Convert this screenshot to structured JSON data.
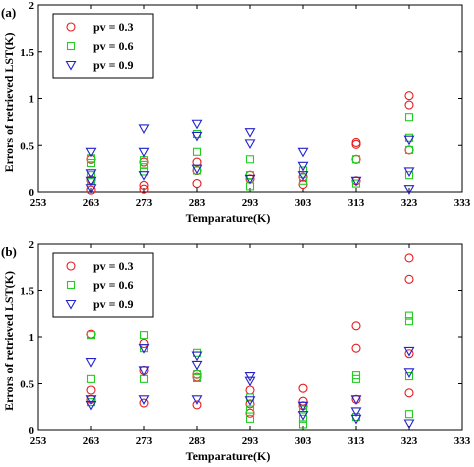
{
  "chart_data": [
    {
      "type": "scatter",
      "panel_label": "(a)",
      "xlabel": "Temparature(K)",
      "ylabel": "Errors of retrieved LST(K)",
      "xlim": [
        253,
        333
      ],
      "ylim": [
        0,
        2
      ],
      "xticks": [
        "253",
        "263",
        "273",
        "283",
        "293",
        "303",
        "313",
        "323",
        "333"
      ],
      "yticks": [
        "0",
        "0.5",
        "1",
        "1.5",
        "2"
      ],
      "grid": false,
      "legend_position": "top-left",
      "series": [
        {
          "name": "pv = 0.3",
          "marker": "circle",
          "color": "#e8191b",
          "points": [
            [
              263,
              0.35
            ],
            [
              263,
              0.13
            ],
            [
              263,
              0.02
            ],
            [
              273,
              0.32
            ],
            [
              273,
              0.07
            ],
            [
              273,
              0.03
            ],
            [
              283,
              0.32
            ],
            [
              283,
              0.23
            ],
            [
              283,
              0.09
            ],
            [
              293,
              0.18
            ],
            [
              293,
              0.14
            ],
            [
              303,
              0.16
            ],
            [
              303,
              0.08
            ],
            [
              313,
              0.53
            ],
            [
              313,
              0.51
            ],
            [
              313,
              0.35
            ],
            [
              313,
              0.12
            ],
            [
              323,
              1.03
            ],
            [
              323,
              0.93
            ],
            [
              323,
              0.45
            ]
          ]
        },
        {
          "name": "pv = 0.6",
          "marker": "square",
          "color": "#22cc22",
          "points": [
            [
              263,
              0.36
            ],
            [
              263,
              0.31
            ],
            [
              263,
              0.18
            ],
            [
              263,
              0.12
            ],
            [
              273,
              0.34
            ],
            [
              273,
              0.29
            ],
            [
              273,
              0.22
            ],
            [
              283,
              0.62
            ],
            [
              283,
              0.43
            ],
            [
              283,
              0.23
            ],
            [
              293,
              0.35
            ],
            [
              293,
              0.18
            ],
            [
              293,
              0.06
            ],
            [
              303,
              0.23
            ],
            [
              303,
              0.12
            ],
            [
              313,
              0.35
            ],
            [
              313,
              0.09
            ],
            [
              323,
              0.8
            ],
            [
              323,
              0.58
            ],
            [
              323,
              0.45
            ],
            [
              323,
              0.18
            ]
          ]
        },
        {
          "name": "pv = 0.9",
          "marker": "triangle-down",
          "color": "#2222cc",
          "points": [
            [
              263,
              0.43
            ],
            [
              263,
              0.2
            ],
            [
              263,
              0.12
            ],
            [
              263,
              0.04
            ],
            [
              273,
              0.68
            ],
            [
              273,
              0.43
            ],
            [
              273,
              0.18
            ],
            [
              283,
              0.73
            ],
            [
              283,
              0.6
            ],
            [
              283,
              0.25
            ],
            [
              293,
              0.64
            ],
            [
              293,
              0.52
            ],
            [
              293,
              0.14
            ],
            [
              303,
              0.43
            ],
            [
              303,
              0.28
            ],
            [
              303,
              0.18
            ],
            [
              313,
              0.12
            ],
            [
              323,
              0.56
            ],
            [
              323,
              0.22
            ],
            [
              323,
              0.03
            ]
          ]
        }
      ]
    },
    {
      "type": "scatter",
      "panel_label": "(b)",
      "xlabel": "Temparature(K)",
      "ylabel": "Errors of retrieved LST(K)",
      "xlim": [
        253,
        333
      ],
      "ylim": [
        0,
        2
      ],
      "xticks": [
        "253",
        "263",
        "273",
        "283",
        "293",
        "303",
        "313",
        "323",
        "333"
      ],
      "yticks": [
        "0",
        "0.5",
        "1",
        "1.5",
        "2"
      ],
      "grid": false,
      "legend_position": "top-left",
      "series": [
        {
          "name": "pv = 0.3",
          "marker": "circle",
          "color": "#e8191b",
          "points": [
            [
              263,
              1.03
            ],
            [
              263,
              0.43
            ],
            [
              263,
              0.33
            ],
            [
              273,
              0.93
            ],
            [
              273,
              0.64
            ],
            [
              273,
              0.29
            ],
            [
              283,
              0.6
            ],
            [
              283,
              0.57
            ],
            [
              283,
              0.27
            ],
            [
              293,
              0.43
            ],
            [
              293,
              0.28
            ],
            [
              293,
              0.18
            ],
            [
              303,
              0.45
            ],
            [
              303,
              0.31
            ],
            [
              303,
              0.26
            ],
            [
              313,
              1.12
            ],
            [
              313,
              0.88
            ],
            [
              313,
              0.33
            ],
            [
              323,
              1.85
            ],
            [
              323,
              1.62
            ],
            [
              323,
              0.82
            ],
            [
              323,
              0.4
            ]
          ]
        },
        {
          "name": "pv = 0.6",
          "marker": "square",
          "color": "#22cc22",
          "points": [
            [
              263,
              1.02
            ],
            [
              263,
              0.55
            ],
            [
              263,
              0.3
            ],
            [
              273,
              1.02
            ],
            [
              273,
              0.88
            ],
            [
              273,
              0.55
            ],
            [
              283,
              0.83
            ],
            [
              283,
              0.6
            ],
            [
              283,
              0.56
            ],
            [
              293,
              0.35
            ],
            [
              293,
              0.22
            ],
            [
              293,
              0.12
            ],
            [
              303,
              0.22
            ],
            [
              303,
              0.12
            ],
            [
              303,
              0.06
            ],
            [
              313,
              0.59
            ],
            [
              313,
              0.55
            ],
            [
              313,
              0.14
            ],
            [
              323,
              1.23
            ],
            [
              323,
              1.17
            ],
            [
              323,
              0.58
            ],
            [
              323,
              0.17
            ]
          ]
        },
        {
          "name": "pv = 0.9",
          "marker": "triangle-down",
          "color": "#2222cc",
          "points": [
            [
              263,
              0.73
            ],
            [
              263,
              0.33
            ],
            [
              263,
              0.27
            ],
            [
              273,
              0.88
            ],
            [
              273,
              0.64
            ],
            [
              273,
              0.33
            ],
            [
              283,
              0.8
            ],
            [
              283,
              0.7
            ],
            [
              283,
              0.33
            ],
            [
              293,
              0.58
            ],
            [
              293,
              0.53
            ],
            [
              293,
              0.32
            ],
            [
              303,
              0.26
            ],
            [
              303,
              0.16
            ],
            [
              313,
              0.33
            ],
            [
              313,
              0.2
            ],
            [
              313,
              0.12
            ],
            [
              323,
              0.85
            ],
            [
              323,
              0.62
            ],
            [
              323,
              0.07
            ]
          ]
        }
      ]
    }
  ]
}
